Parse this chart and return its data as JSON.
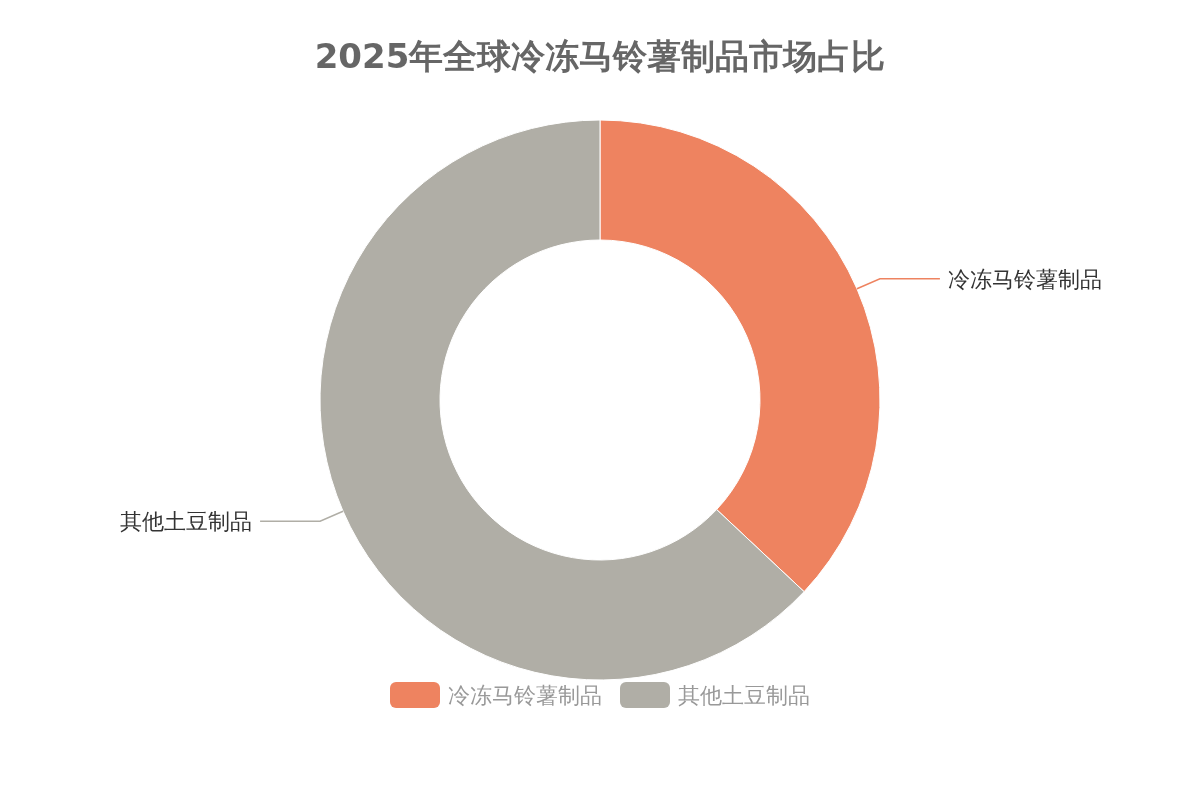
{
  "chart_data": {
    "type": "donut",
    "title": "2025年全球冷冻马铃薯制品市场占比",
    "categories": [
      "冷冻马铃薯制品",
      "其他土豆制品"
    ],
    "values": [
      37,
      63
    ],
    "colors": [
      "#ee8360",
      "#b0aea6"
    ],
    "legend": "bottom"
  }
}
